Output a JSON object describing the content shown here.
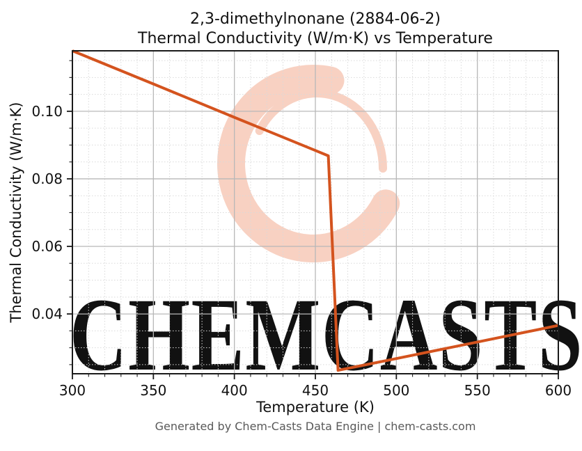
{
  "title": {
    "line1": "2,3-dimethylnonane (2884-06-2)",
    "line2": "Thermal Conductivity (W/m·K) vs Temperature"
  },
  "footer": {
    "text": "Generated by Chem-Casts Data Engine | chem-casts.com",
    "color": "#595959"
  },
  "watermark": {
    "text": "CHEMCASTS",
    "logo": "chemcasts-swirl-logo",
    "color": "#f8d1c2"
  },
  "chart_data": {
    "type": "line",
    "title": "2,3-dimethylnonane (2884-06-2) — Thermal Conductivity (W/m·K) vs Temperature",
    "xlabel": "Temperature (K)",
    "ylabel": "Thermal Conductivity (W/m·K)",
    "xlim": [
      300,
      600
    ],
    "ylim": [
      0.0223,
      0.1179
    ],
    "x_major_ticks": [
      300,
      350,
      400,
      450,
      500,
      550,
      600
    ],
    "x_tick_labels": [
      "300",
      "350",
      "400",
      "450",
      "500",
      "550",
      "600"
    ],
    "x_minor_step": 10,
    "y_major_ticks": [
      0.04,
      0.06,
      0.08,
      0.1
    ],
    "y_tick_labels": [
      "0.04",
      "0.06",
      "0.08",
      "0.10"
    ],
    "y_minor_step": 0.005,
    "grid": {
      "major": true,
      "minor": true,
      "major_color": "#b8b8b8",
      "minor_color": "#d9d9d9"
    },
    "legend": false,
    "series": [
      {
        "name": "thermal_conductivity",
        "color": "#d4531e",
        "line_width": 4,
        "points": [
          [
            300,
            0.1179
          ],
          [
            350,
            0.1081
          ],
          [
            400,
            0.0982
          ],
          [
            450,
            0.0884
          ],
          [
            458,
            0.0868
          ],
          [
            464,
            0.0233
          ],
          [
            500,
            0.0268
          ],
          [
            550,
            0.0317
          ],
          [
            600,
            0.0366
          ]
        ],
        "description": "liquid branch decreasing 300–458 K, sharp phase-transition drop at ≈458–464 K, vapor branch increasing 464–600 K"
      }
    ]
  }
}
